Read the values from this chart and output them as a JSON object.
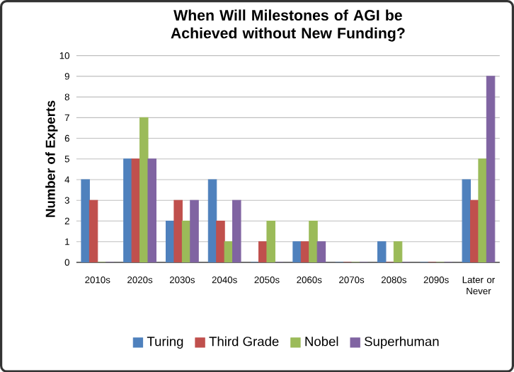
{
  "chart_data": {
    "type": "bar",
    "title": "When Will Milestones of AGI be Achieved without New Funding?",
    "ylabel": "Number of Experts",
    "categories": [
      "2010s",
      "2020s",
      "2030s",
      "2040s",
      "2050s",
      "2060s",
      "2070s",
      "2080s",
      "2090s",
      "Later or Never"
    ],
    "series": [
      {
        "name": "Turing",
        "color": "#4f81bd",
        "values": [
          4,
          5,
          2,
          4,
          0,
          1,
          0,
          1,
          0,
          4
        ]
      },
      {
        "name": "Third Grade",
        "color": "#c0504d",
        "values": [
          3,
          5,
          3,
          2,
          1,
          1,
          0,
          0,
          0,
          3
        ]
      },
      {
        "name": "Nobel",
        "color": "#9bbb59",
        "values": [
          0,
          7,
          2,
          1,
          2,
          2,
          0,
          1,
          0,
          5
        ]
      },
      {
        "name": "Superhuman",
        "color": "#8064a2",
        "values": [
          0,
          5,
          3,
          3,
          0,
          1,
          0,
          0,
          0,
          9
        ]
      }
    ],
    "ylim": [
      0,
      10
    ],
    "yticks": [
      0,
      1,
      2,
      3,
      4,
      5,
      6,
      7,
      8,
      9,
      10
    ],
    "grid": "y",
    "legend": "bottom"
  }
}
